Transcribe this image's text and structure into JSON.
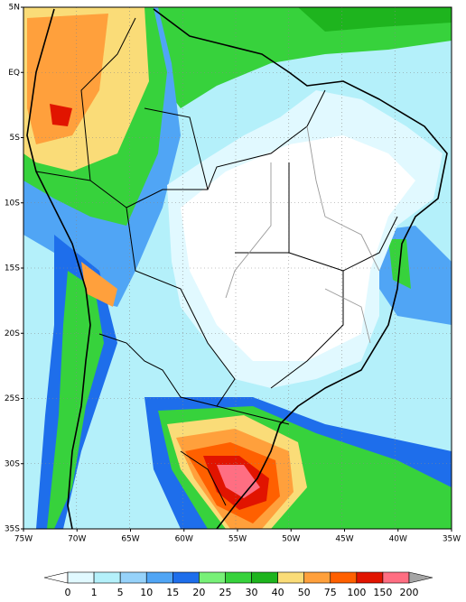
{
  "map": {
    "lon_labels": [
      "75W",
      "70W",
      "65W",
      "60W",
      "55W",
      "50W",
      "45W",
      "40W",
      "35W"
    ],
    "lat_labels": [
      "5N",
      "EQ",
      "5S",
      "10S",
      "15S",
      "20S",
      "25S",
      "30S",
      "35S"
    ],
    "legend": {
      "levels": [
        "0",
        "1",
        "5",
        "10",
        "15",
        "20",
        "25",
        "30",
        "40",
        "50",
        "75",
        "100",
        "150",
        "200"
      ],
      "colors": [
        "#ffffff",
        "#e1f9ff",
        "#b4f0fa",
        "#96d2fa",
        "#50a5f5",
        "#1e6eeb",
        "#78f078",
        "#37d23c",
        "#1eb41e",
        "#fadc78",
        "#ffa03c",
        "#ff6000",
        "#e11400",
        "#ff6e82",
        "#a5a5a5"
      ]
    }
  }
}
